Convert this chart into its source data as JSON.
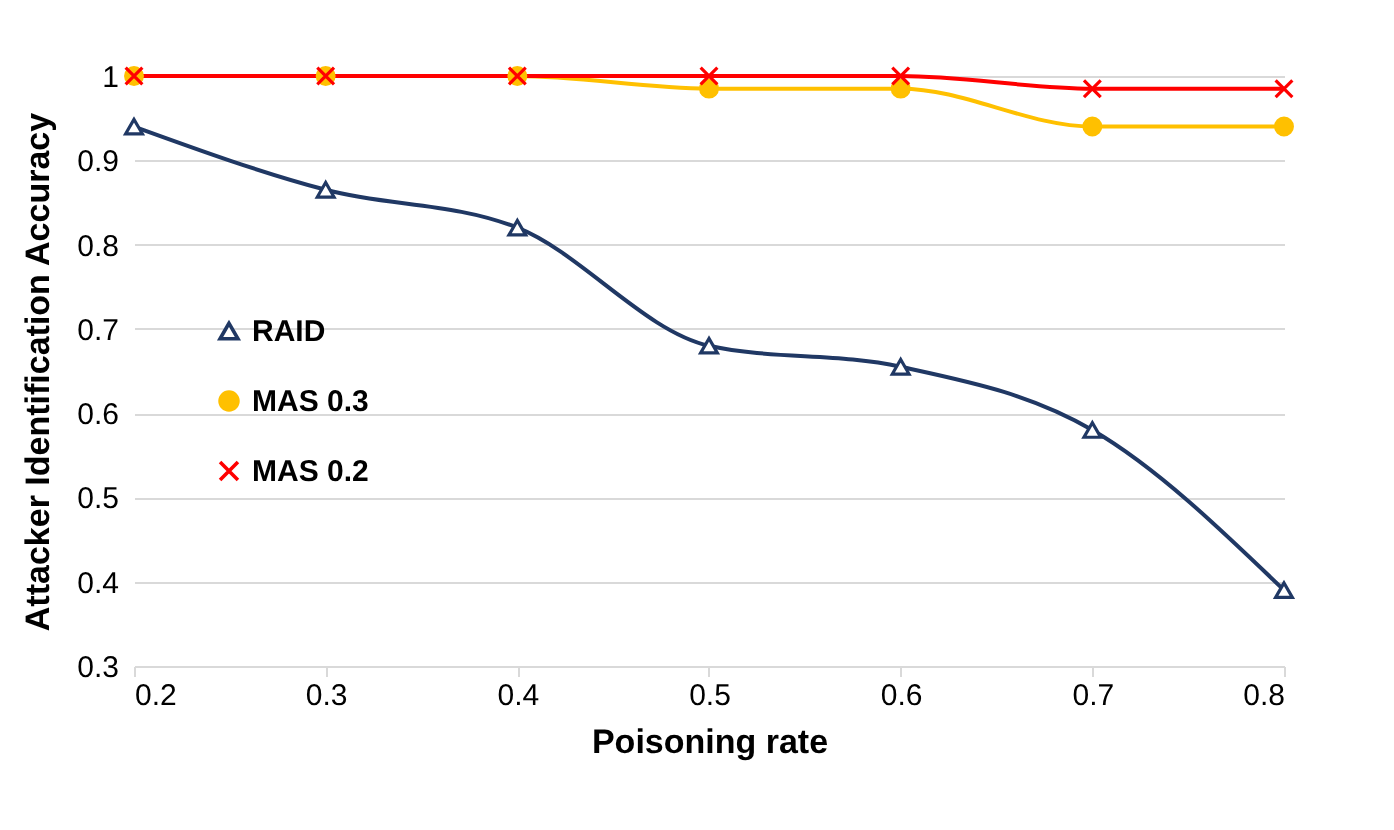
{
  "chart_data": {
    "type": "line",
    "xlabel": "Poisoning rate",
    "ylabel": "Attacker Identification Accuracy",
    "x": [
      0.2,
      0.3,
      0.4,
      0.5,
      0.6,
      0.7,
      0.8
    ],
    "xlim": [
      0.2,
      0.8
    ],
    "xticks": [
      0.2,
      0.3,
      0.4,
      0.5,
      0.6,
      0.7,
      0.8
    ],
    "ylim": [
      0.3,
      1
    ],
    "yticks": [
      0.3,
      0.4,
      0.5,
      0.6,
      0.7,
      0.8,
      0.9,
      1
    ],
    "grid": "y",
    "legend": "left",
    "line_style": "solid",
    "series": [
      {
        "name": "RAID",
        "color": "#203864",
        "marker": "triangle",
        "values": [
          0.94,
          0.865,
          0.82,
          0.68,
          0.655,
          0.58,
          0.39
        ]
      },
      {
        "name": "MAS 0.3",
        "color": "#ffc000",
        "marker": "circle",
        "values": [
          1,
          1,
          1,
          0.985,
          0.985,
          0.94,
          0.94
        ]
      },
      {
        "name": "MAS 0.2",
        "color": "#ff0000",
        "marker": "cross",
        "values": [
          1,
          1,
          1,
          1,
          1,
          0.985,
          0.985
        ]
      }
    ]
  }
}
